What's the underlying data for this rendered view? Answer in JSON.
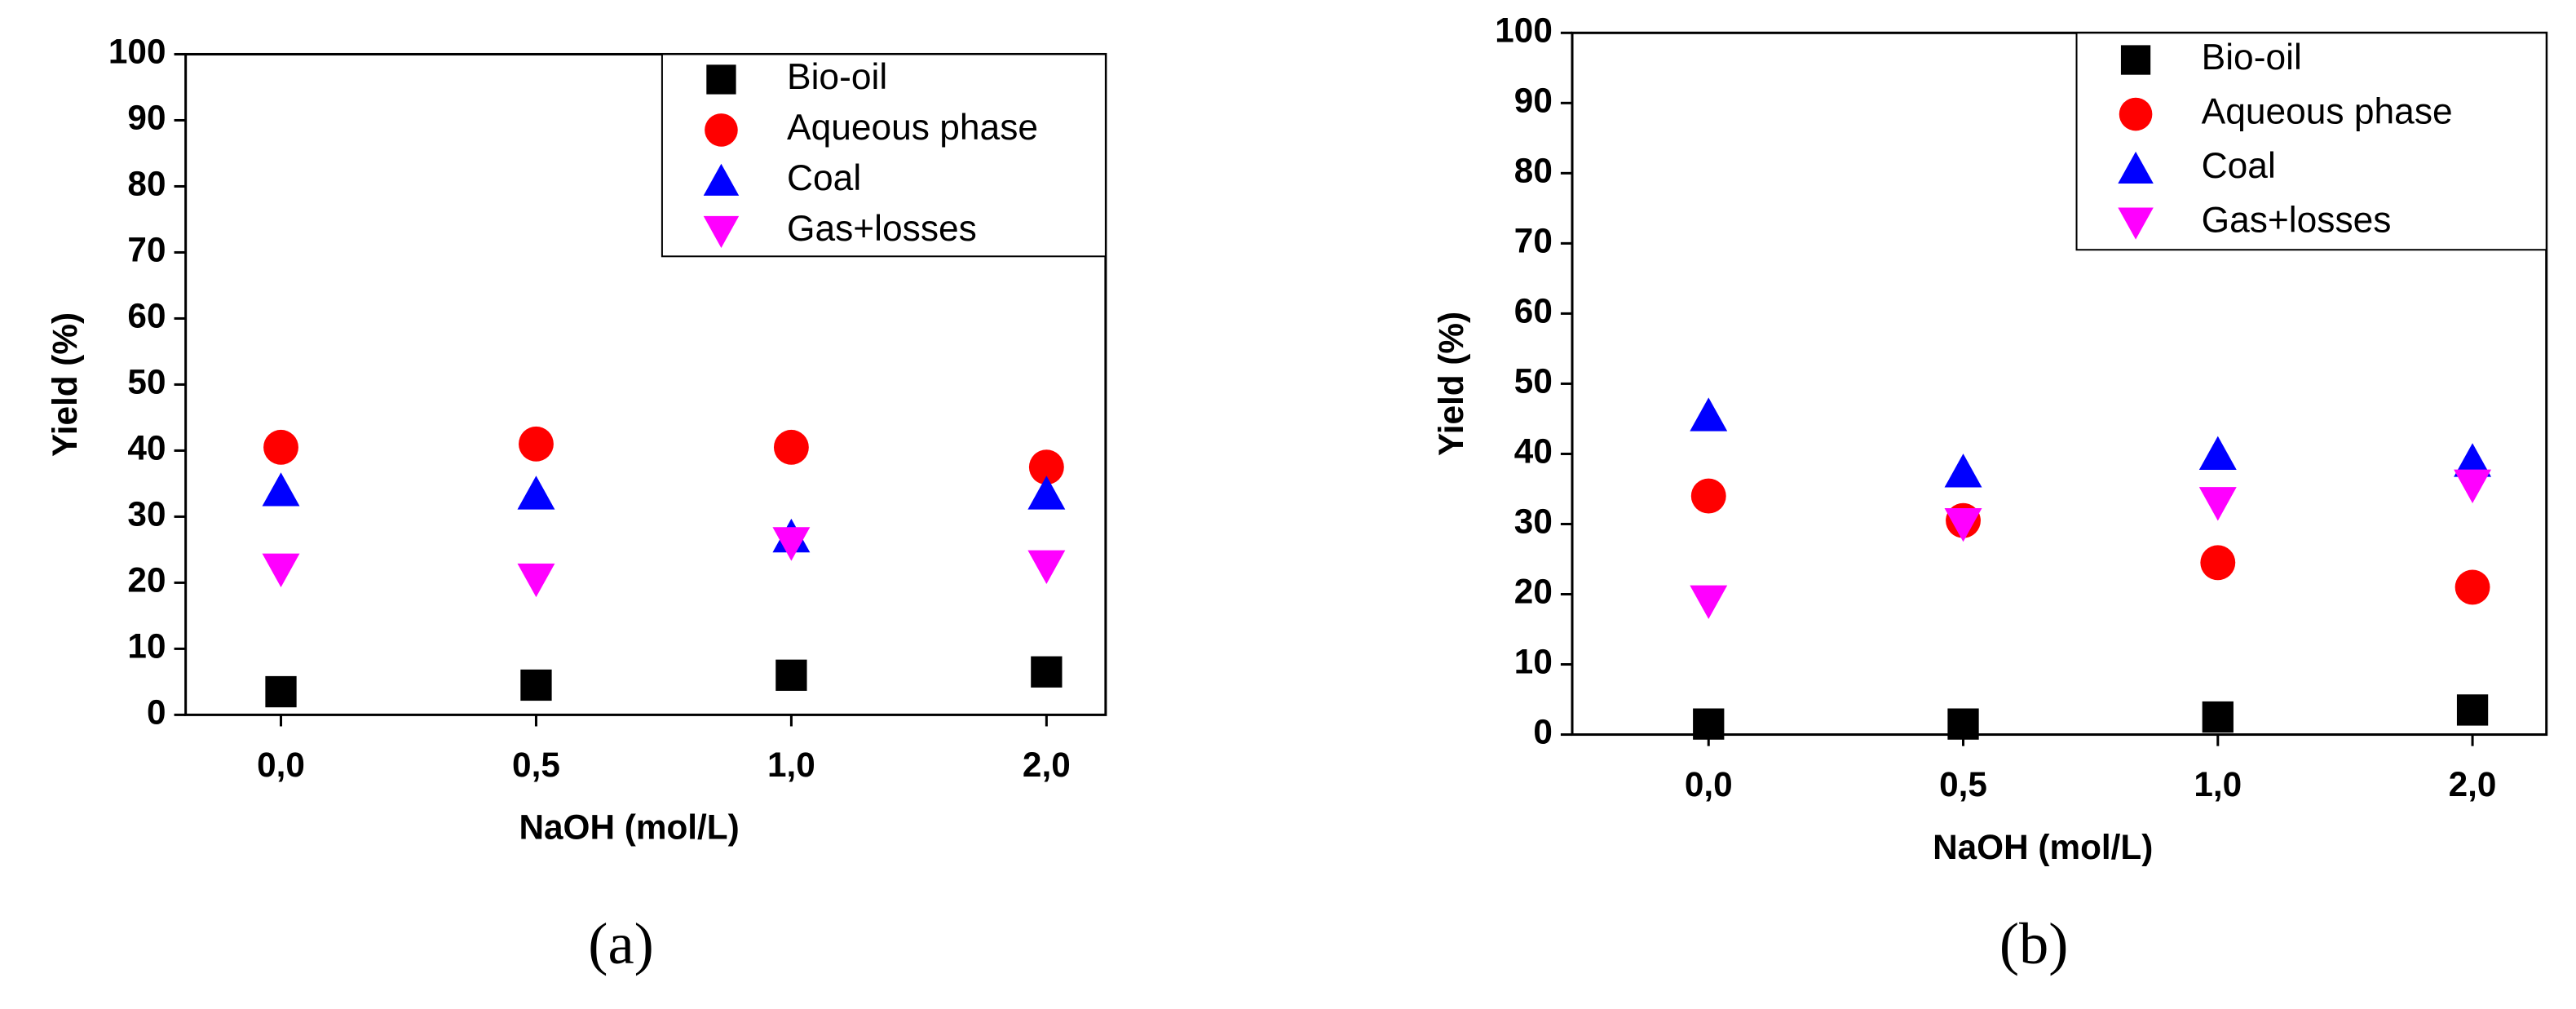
{
  "chart_data": [
    {
      "type": "scatter",
      "caption": "(a)",
      "xlabel": "NaOH (mol/L)",
      "ylabel": "Yield (%)",
      "categories": [
        "0,0",
        "0,5",
        "1,0",
        "2,0"
      ],
      "ylim": [
        0,
        100
      ],
      "yticks": [
        0,
        10,
        20,
        30,
        40,
        50,
        60,
        70,
        80,
        90,
        100
      ],
      "legend": "upper right",
      "series": [
        {
          "name": "Bio-oil",
          "color": "#000000",
          "marker": "square",
          "values": [
            3.5,
            4.5,
            6,
            6.5
          ]
        },
        {
          "name": "Aqueous phase",
          "color": "#ff0000",
          "marker": "circle",
          "values": [
            40.5,
            41,
            40.5,
            37.5
          ]
        },
        {
          "name": "Coal",
          "color": "#0000ff",
          "marker": "triangle-up",
          "values": [
            34,
            33.5,
            27,
            33.5
          ]
        },
        {
          "name": "Gas+losses",
          "color": "#ff00ff",
          "marker": "triangle-down",
          "values": [
            22,
            20.5,
            26,
            22.5
          ]
        }
      ]
    },
    {
      "type": "scatter",
      "caption": "(b)",
      "xlabel": "NaOH (mol/L)",
      "ylabel": "Yield (%)",
      "categories": [
        "0,0",
        "0,5",
        "1,0",
        "2,0"
      ],
      "ylim": [
        0,
        100
      ],
      "yticks": [
        0,
        10,
        20,
        30,
        40,
        50,
        60,
        70,
        80,
        90,
        100
      ],
      "legend": "upper right",
      "series": [
        {
          "name": "Bio-oil",
          "color": "#000000",
          "marker": "square",
          "values": [
            1.5,
            1.5,
            2.5,
            3.5
          ]
        },
        {
          "name": "Aqueous phase",
          "color": "#ff0000",
          "marker": "circle",
          "values": [
            34,
            30.5,
            24.5,
            21
          ]
        },
        {
          "name": "Coal",
          "color": "#0000ff",
          "marker": "triangle-up",
          "values": [
            45.5,
            37.5,
            40,
            39
          ]
        },
        {
          "name": "Gas+losses",
          "color": "#ff00ff",
          "marker": "triangle-down",
          "values": [
            19,
            30,
            33,
            35.5
          ]
        }
      ]
    }
  ]
}
